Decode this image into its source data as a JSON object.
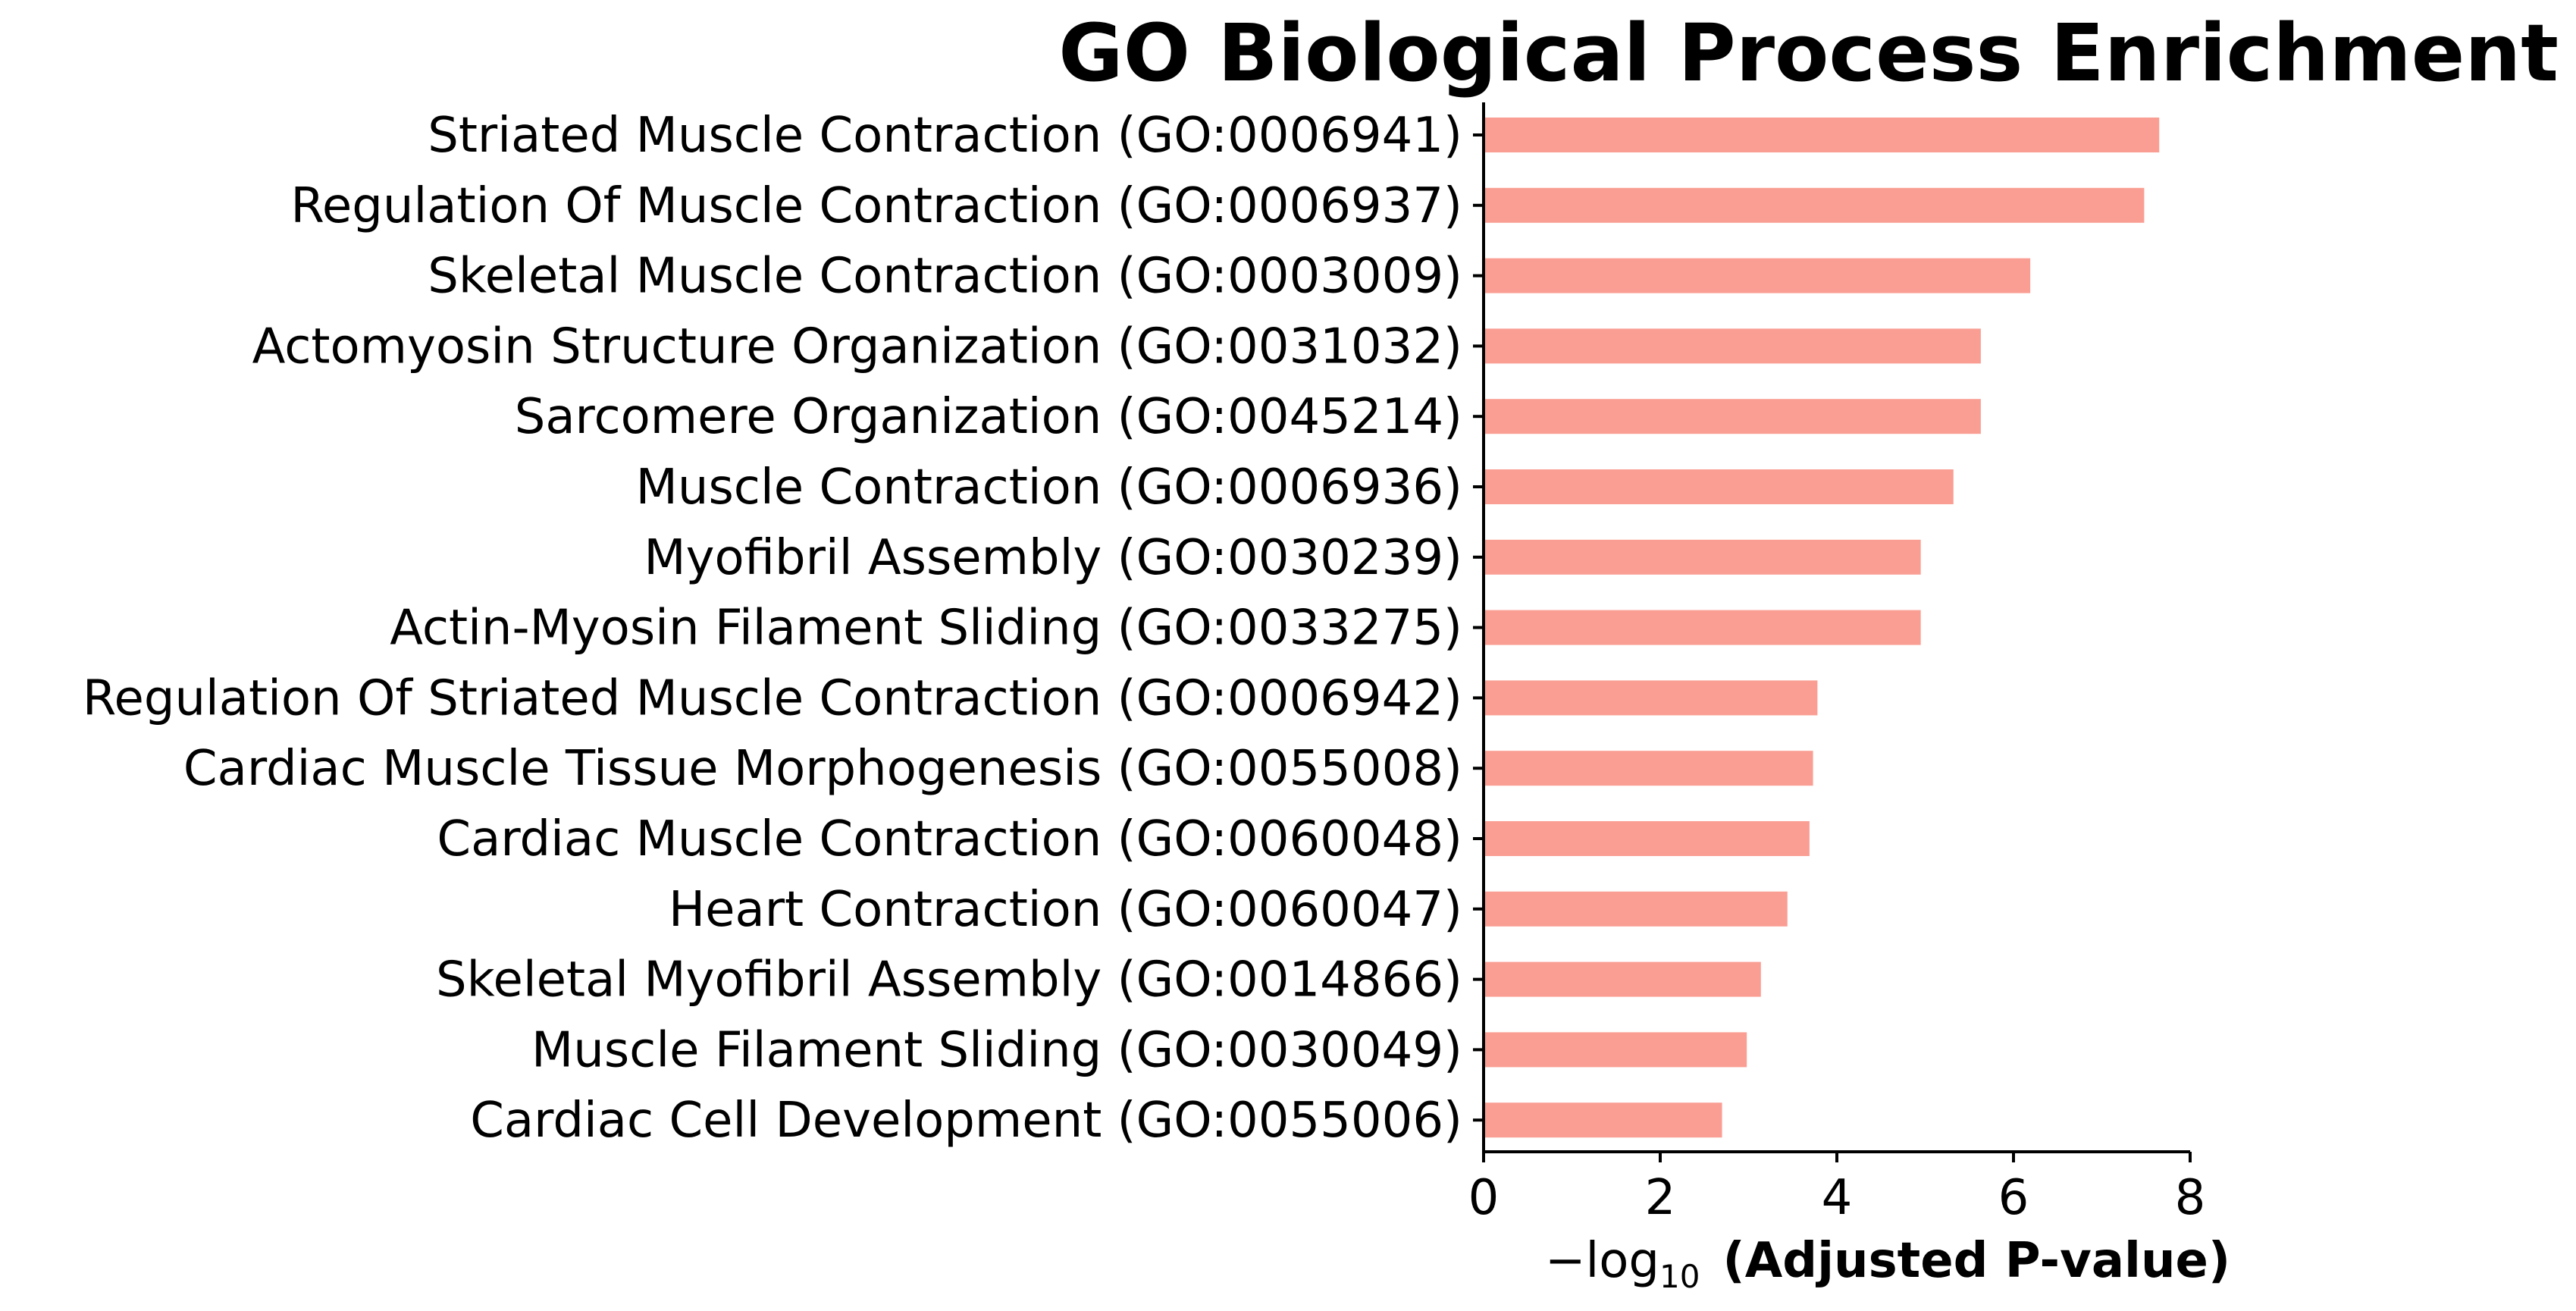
{
  "chart_data": {
    "type": "bar",
    "orientation": "horizontal",
    "title": "GO Biological Process Enrichment",
    "xlabel_prefix": "−log",
    "xlabel_subscript": "10",
    "xlabel_main": "(Adjusted P-value)",
    "categories": [
      "Striated Muscle Contraction (GO:0006941)",
      "Regulation Of Muscle Contraction (GO:0006937)",
      "Skeletal Muscle Contraction (GO:0003009)",
      "Actomyosin Structure Organization (GO:0031032)",
      "Sarcomere Organization (GO:0045214)",
      "Muscle Contraction (GO:0006936)",
      "Myofibril Assembly (GO:0030239)",
      "Actin-Myosin Filament Sliding (GO:0033275)",
      "Regulation Of Striated Muscle Contraction (GO:0006942)",
      "Cardiac Muscle Tissue Morphogenesis (GO:0055008)",
      "Cardiac Muscle Contraction (GO:0060048)",
      "Heart Contraction (GO:0060047)",
      "Skeletal Myofibril Assembly (GO:0014866)",
      "Muscle Filament Sliding (GO:0030049)",
      "Cardiac Cell Development (GO:0055006)"
    ],
    "values": [
      7.65,
      7.48,
      6.19,
      5.63,
      5.63,
      5.32,
      4.95,
      4.95,
      3.78,
      3.73,
      3.69,
      3.44,
      3.14,
      2.98,
      2.7
    ],
    "xlim": [
      0,
      8
    ],
    "xticks": [
      "0",
      "2",
      "4",
      "6",
      "8"
    ],
    "grid": false,
    "legend": "none",
    "bar_color": "#fa9e93",
    "axis_color": "#000000"
  }
}
